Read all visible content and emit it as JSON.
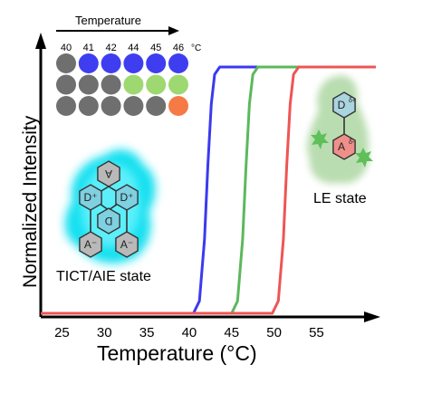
{
  "chart_data": {
    "type": "line",
    "xlabel": "Temperature (°C)",
    "ylabel": "Normalized Intensity",
    "x_ticks": [
      25,
      30,
      35,
      40,
      45,
      50,
      55
    ],
    "xlim": [
      22.5,
      62
    ],
    "ylim": [
      0,
      1
    ],
    "grid": false,
    "series": [
      {
        "color": "#3a3af0",
        "points": [
          [
            22.5,
            0
          ],
          [
            40.5,
            0
          ],
          [
            41.2,
            0.05
          ],
          [
            41.8,
            0.3
          ],
          [
            42.2,
            0.6
          ],
          [
            42.6,
            0.85
          ],
          [
            43.0,
            0.97
          ],
          [
            43.6,
            1
          ],
          [
            62,
            1
          ]
        ]
      },
      {
        "color": "#5cb85c",
        "points": [
          [
            22.5,
            0
          ],
          [
            45.0,
            0
          ],
          [
            45.7,
            0.05
          ],
          [
            46.3,
            0.3
          ],
          [
            46.7,
            0.6
          ],
          [
            47.1,
            0.85
          ],
          [
            47.5,
            0.97
          ],
          [
            48.1,
            1
          ],
          [
            62,
            1
          ]
        ]
      },
      {
        "color": "#ee5555",
        "points": [
          [
            22.5,
            0
          ],
          [
            49.8,
            0
          ],
          [
            50.5,
            0.05
          ],
          [
            51.1,
            0.3
          ],
          [
            51.5,
            0.6
          ],
          [
            51.9,
            0.85
          ],
          [
            52.3,
            0.97
          ],
          [
            52.9,
            1
          ],
          [
            62,
            1
          ]
        ]
      }
    ]
  },
  "inset_grid": {
    "title": "Temperature",
    "unit": "°C",
    "columns": [
      "40",
      "41",
      "42",
      "44",
      "45",
      "46"
    ],
    "rows": [
      [
        "#6f6f6f",
        "#3e3ef0",
        "#3e3ef0",
        "#3e3ef0",
        "#3e3ef0",
        "#3e3ef0"
      ],
      [
        "#6f6f6f",
        "#6f6f6f",
        "#6f6f6f",
        "#9ed870",
        "#9ed870",
        "#9ed870"
      ],
      [
        "#6f6f6f",
        "#6f6f6f",
        "#6f6f6f",
        "#6f6f6f",
        "#6f6f6f",
        "#f57a45"
      ]
    ]
  },
  "annotations": {
    "left_state": "TICT/AIE state",
    "right_state": "LE state",
    "mol_donor": "D",
    "mol_donor_sup": "δ+",
    "mol_acceptor": "A",
    "mol_acceptor_sup": "δ-",
    "tict_donor": "D⁺",
    "tict_acceptor": "A⁻"
  },
  "colors": {
    "axis": "#000000",
    "blue": "#3a3af0",
    "green": "#5cb85c",
    "red": "#ee5555",
    "tict_glow": "#19e0f0",
    "le_glow": "#b9ddb0"
  }
}
